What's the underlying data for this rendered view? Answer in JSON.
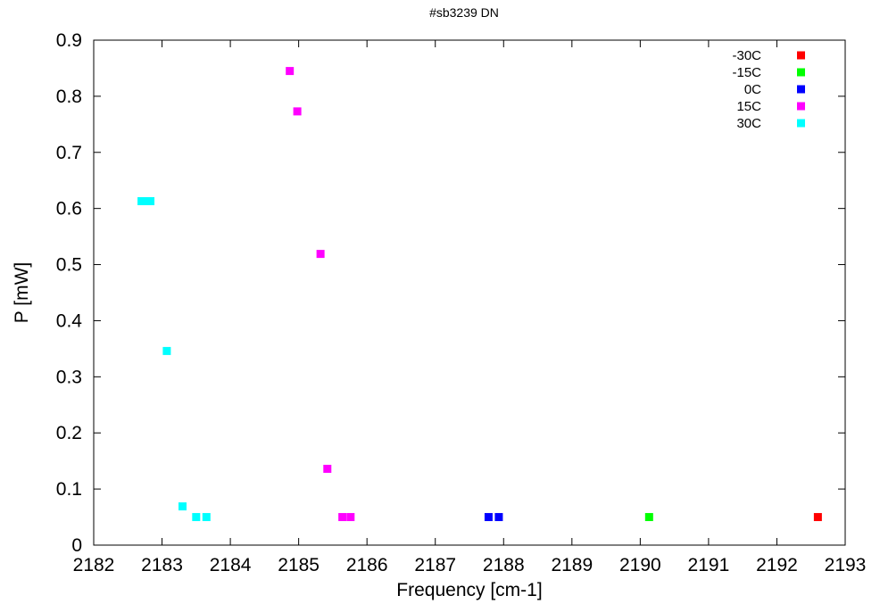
{
  "chart_data": {
    "type": "scatter",
    "title": "#sb3239 DN",
    "xlabel": "Frequency [cm-1]",
    "ylabel": "P [mW]",
    "xlim": [
      2182,
      2193
    ],
    "ylim": [
      0,
      0.9
    ],
    "xticks": [
      "2182",
      "2183",
      "2184",
      "2185",
      "2186",
      "2187",
      "2188",
      "2189",
      "2190",
      "2191",
      "2192",
      "2193"
    ],
    "yticks": [
      "0",
      "0.1",
      "0.2",
      "0.3",
      "0.4",
      "0.5",
      "0.6",
      "0.7",
      "0.8",
      "0.9"
    ],
    "grid": false,
    "legend_position": "top-right",
    "series": [
      {
        "name": "-30C",
        "color": "#ff0000",
        "points": [
          [
            2192.6,
            0.05
          ]
        ]
      },
      {
        "name": "-15C",
        "color": "#00ff00",
        "points": [
          [
            2190.13,
            0.05
          ]
        ]
      },
      {
        "name": "0C",
        "color": "#0000ff",
        "points": [
          [
            2187.78,
            0.05
          ],
          [
            2187.93,
            0.05
          ]
        ]
      },
      {
        "name": "15C",
        "color": "#ff00ff",
        "points": [
          [
            2184.87,
            0.845
          ],
          [
            2184.98,
            0.773
          ],
          [
            2185.32,
            0.519
          ],
          [
            2185.42,
            0.136
          ],
          [
            2185.64,
            0.05
          ],
          [
            2185.76,
            0.05
          ]
        ]
      },
      {
        "name": "30C",
        "color": "#00ffff",
        "points": [
          [
            2182.7,
            0.613
          ],
          [
            2182.76,
            0.613
          ],
          [
            2182.83,
            0.613
          ],
          [
            2183.07,
            0.346
          ],
          [
            2183.3,
            0.069
          ],
          [
            2183.5,
            0.05
          ],
          [
            2183.65,
            0.05
          ]
        ]
      }
    ]
  }
}
